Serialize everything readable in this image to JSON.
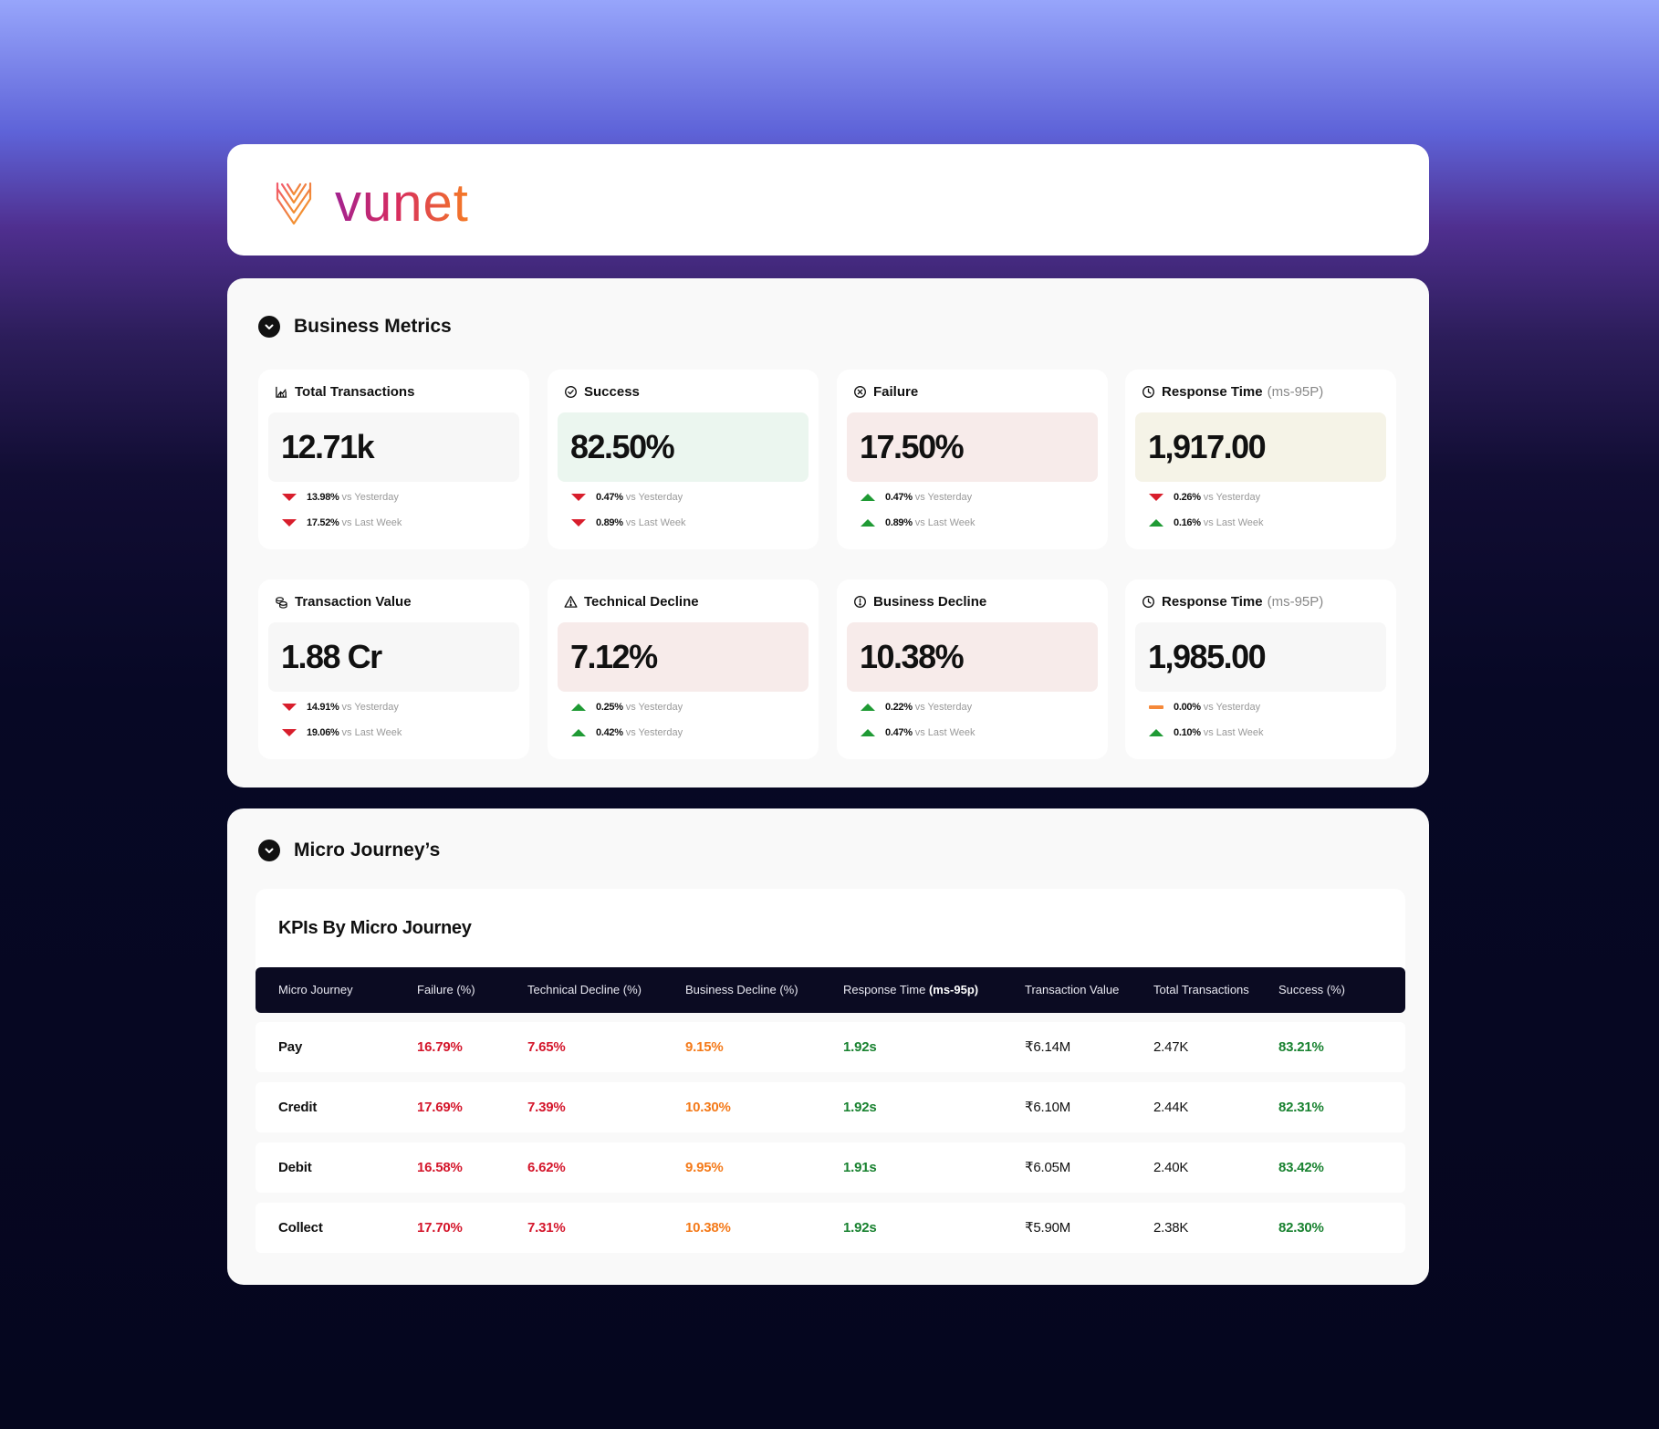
{
  "brand": {
    "logo_text": "vunet"
  },
  "business_metrics": {
    "title": "Business Metrics",
    "cards": [
      {
        "title": "Total Transactions",
        "icon": "chart-icon",
        "value": "12.71k",
        "tint": "grey",
        "d1": {
          "dir": "down",
          "pct": "13.98%",
          "text": "vs Yesterday"
        },
        "d2": {
          "dir": "down",
          "pct": "17.52%",
          "text": "vs Last Week"
        }
      },
      {
        "title": "Success",
        "icon": "check-circle-icon",
        "value": "82.50%",
        "tint": "green",
        "d1": {
          "dir": "down",
          "pct": "0.47%",
          "text": "vs Yesterday"
        },
        "d2": {
          "dir": "down",
          "pct": "0.89%",
          "text": "vs Last Week"
        }
      },
      {
        "title": "Failure",
        "icon": "x-circle-icon",
        "value": "17.50%",
        "tint": "red",
        "d1": {
          "dir": "up",
          "pct": "0.47%",
          "text": "vs Yesterday"
        },
        "d2": {
          "dir": "up",
          "pct": "0.89%",
          "text": "vs Last Week"
        }
      },
      {
        "title": "Response Time",
        "unit": "(ms-95P)",
        "icon": "clock-icon",
        "value": "1,917.00",
        "tint": "beige",
        "d1": {
          "dir": "down",
          "pct": "0.26%",
          "text": "vs Yesterday"
        },
        "d2": {
          "dir": "up",
          "pct": "0.16%",
          "text": "vs Last Week"
        }
      },
      {
        "title": "Transaction Value",
        "icon": "coins-icon",
        "value": "1.88 Cr",
        "tint": "grey",
        "d1": {
          "dir": "down",
          "pct": "14.91%",
          "text": "vs Yesterday"
        },
        "d2": {
          "dir": "down",
          "pct": "19.06%",
          "text": "vs Last Week"
        }
      },
      {
        "title": "Technical Decline",
        "icon": "warning-icon",
        "value": "7.12%",
        "tint": "red",
        "d1": {
          "dir": "up",
          "pct": "0.25%",
          "text": "vs Yesterday"
        },
        "d2": {
          "dir": "up",
          "pct": "0.42%",
          "text": "vs Yesterday"
        }
      },
      {
        "title": "Business Decline",
        "icon": "info-circle-icon",
        "value": "10.38%",
        "tint": "red",
        "d1": {
          "dir": "up",
          "pct": "0.22%",
          "text": "vs Yesterday"
        },
        "d2": {
          "dir": "up",
          "pct": "0.47%",
          "text": "vs Last Week"
        }
      },
      {
        "title": "Response Time",
        "unit": "(ms-95P)",
        "icon": "clock-icon",
        "value": "1,985.00",
        "tint": "grey",
        "d1": {
          "dir": "flat",
          "pct": "0.00%",
          "text": "vs Yesterday"
        },
        "d2": {
          "dir": "up",
          "pct": "0.10%",
          "text": "vs Last Week"
        }
      }
    ]
  },
  "micro_journeys": {
    "title": "Micro Journey’s",
    "table_title": "KPIs By Micro Journey",
    "columns": [
      {
        "label": "Micro Journey"
      },
      {
        "label": "Failure (%)"
      },
      {
        "label": "Technical Decline (%)"
      },
      {
        "label": "Business Decline (%)"
      },
      {
        "label": "Response Time ",
        "bold": "(ms-95p)"
      },
      {
        "label": "Transaction Value"
      },
      {
        "label": "Total Transactions"
      },
      {
        "label": "Success (%)"
      }
    ],
    "rows": [
      {
        "name": "Pay",
        "failure": "16.79%",
        "technical": "7.65%",
        "business": "9.15%",
        "response": "1.92s",
        "value": "₹6.14M",
        "total": "2.47K",
        "success": "83.21%"
      },
      {
        "name": "Credit",
        "failure": "17.69%",
        "technical": "7.39%",
        "business": "10.30%",
        "response": "1.92s",
        "value": "₹6.10M",
        "total": "2.44K",
        "success": "82.31%"
      },
      {
        "name": "Debit",
        "failure": "16.58%",
        "technical": "6.62%",
        "business": "9.95%",
        "response": "1.91s",
        "value": "₹6.05M",
        "total": "2.40K",
        "success": "83.42%"
      },
      {
        "name": "Collect",
        "failure": "17.70%",
        "technical": "7.31%",
        "business": "10.38%",
        "response": "1.92s",
        "value": "₹5.90M",
        "total": "2.38K",
        "success": "82.30%"
      }
    ]
  },
  "colors": {
    "accent_red": "#d4162b",
    "accent_orange": "#f47a1a",
    "accent_green": "#198230",
    "header_dark": "#0b0b22"
  }
}
